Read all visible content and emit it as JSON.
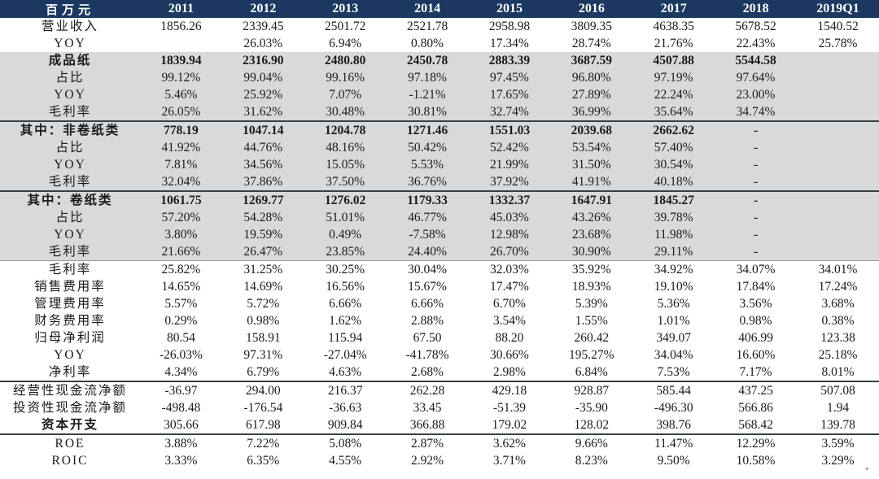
{
  "chart_data": {
    "type": "table",
    "unit_label": "百万元",
    "columns": [
      "2011",
      "2012",
      "2013",
      "2014",
      "2015",
      "2016",
      "2017",
      "2018",
      "2019Q1"
    ],
    "rows": [
      {
        "label": "营业收入",
        "values": [
          "1856.26",
          "2339.45",
          "2501.72",
          "2521.78",
          "2958.98",
          "3809.35",
          "4638.35",
          "5678.52",
          "1540.52"
        ],
        "bold": false,
        "shaded": false,
        "rule": ""
      },
      {
        "label": "YOY",
        "values": [
          "",
          "26.03%",
          "6.94%",
          "0.80%",
          "17.34%",
          "28.74%",
          "21.76%",
          "22.43%",
          "25.78%"
        ],
        "bold": false,
        "shaded": false,
        "rule": ""
      },
      {
        "label": "成品纸",
        "values": [
          "1839.94",
          "2316.90",
          "2480.80",
          "2450.78",
          "2883.39",
          "3687.59",
          "4507.88",
          "5544.58",
          ""
        ],
        "bold": true,
        "shaded": true,
        "rule": ""
      },
      {
        "label": "占比",
        "values": [
          "99.12%",
          "99.04%",
          "99.16%",
          "97.18%",
          "97.45%",
          "96.80%",
          "97.19%",
          "97.64%",
          ""
        ],
        "bold": false,
        "shaded": true,
        "rule": ""
      },
      {
        "label": "YOY",
        "values": [
          "5.46%",
          "25.92%",
          "7.07%",
          "-1.21%",
          "17.65%",
          "27.89%",
          "22.24%",
          "23.00%",
          ""
        ],
        "bold": false,
        "shaded": true,
        "rule": ""
      },
      {
        "label": "毛利率",
        "values": [
          "26.05%",
          "31.62%",
          "30.48%",
          "30.81%",
          "32.74%",
          "36.99%",
          "35.64%",
          "34.74%",
          ""
        ],
        "bold": false,
        "shaded": true,
        "rule": ""
      },
      {
        "label": "其中：非卷纸类",
        "values": [
          "778.19",
          "1047.14",
          "1204.78",
          "1271.46",
          "1551.03",
          "2039.68",
          "2662.62",
          "-",
          ""
        ],
        "bold": true,
        "shaded": true,
        "rule": "dark"
      },
      {
        "label": "占比",
        "values": [
          "41.92%",
          "44.76%",
          "48.16%",
          "50.42%",
          "52.42%",
          "53.54%",
          "57.40%",
          "-",
          ""
        ],
        "bold": false,
        "shaded": true,
        "rule": ""
      },
      {
        "label": "YOY",
        "values": [
          "7.81%",
          "34.56%",
          "15.05%",
          "5.53%",
          "21.99%",
          "31.50%",
          "30.54%",
          "-",
          ""
        ],
        "bold": false,
        "shaded": true,
        "rule": ""
      },
      {
        "label": "毛利率",
        "values": [
          "32.04%",
          "37.86%",
          "37.50%",
          "36.76%",
          "37.92%",
          "41.91%",
          "40.18%",
          "-",
          ""
        ],
        "bold": false,
        "shaded": true,
        "rule": ""
      },
      {
        "label": "其中：卷纸类",
        "values": [
          "1061.75",
          "1269.77",
          "1276.02",
          "1179.33",
          "1332.37",
          "1647.91",
          "1845.27",
          "-",
          ""
        ],
        "bold": true,
        "shaded": true,
        "rule": "dark"
      },
      {
        "label": "占比",
        "values": [
          "57.20%",
          "54.28%",
          "51.01%",
          "46.77%",
          "45.03%",
          "43.26%",
          "39.78%",
          "-",
          ""
        ],
        "bold": false,
        "shaded": true,
        "rule": ""
      },
      {
        "label": "YOY",
        "values": [
          "3.80%",
          "19.59%",
          "0.49%",
          "-7.58%",
          "12.98%",
          "23.68%",
          "11.98%",
          "-",
          ""
        ],
        "bold": false,
        "shaded": true,
        "rule": ""
      },
      {
        "label": "毛利率",
        "values": [
          "21.66%",
          "26.47%",
          "23.85%",
          "24.40%",
          "26.70%",
          "30.90%",
          "29.11%",
          "-",
          ""
        ],
        "bold": false,
        "shaded": true,
        "rule": ""
      },
      {
        "label": "毛利率",
        "values": [
          "25.82%",
          "31.25%",
          "30.25%",
          "30.04%",
          "32.03%",
          "35.92%",
          "34.92%",
          "34.07%",
          "34.01%"
        ],
        "bold": false,
        "shaded": false,
        "rule": "light"
      },
      {
        "label": "销售费用率",
        "values": [
          "14.65%",
          "14.69%",
          "16.56%",
          "15.67%",
          "17.47%",
          "18.93%",
          "19.10%",
          "17.84%",
          "17.24%"
        ],
        "bold": false,
        "shaded": false,
        "rule": ""
      },
      {
        "label": "管理费用率",
        "values": [
          "5.57%",
          "5.72%",
          "6.66%",
          "6.66%",
          "6.70%",
          "5.39%",
          "5.36%",
          "3.56%",
          "3.68%"
        ],
        "bold": false,
        "shaded": false,
        "rule": ""
      },
      {
        "label": "财务费用率",
        "values": [
          "0.29%",
          "0.98%",
          "1.62%",
          "2.88%",
          "3.54%",
          "1.55%",
          "1.01%",
          "0.98%",
          "0.38%"
        ],
        "bold": false,
        "shaded": false,
        "rule": ""
      },
      {
        "label": "归母净利润",
        "values": [
          "80.54",
          "158.91",
          "115.94",
          "67.50",
          "88.20",
          "260.42",
          "349.07",
          "406.99",
          "123.38"
        ],
        "bold": false,
        "shaded": false,
        "rule": ""
      },
      {
        "label": "YOY",
        "values": [
          "-26.03%",
          "97.31%",
          "-27.04%",
          "-41.78%",
          "30.66%",
          "195.27%",
          "34.04%",
          "16.60%",
          "25.18%"
        ],
        "bold": false,
        "shaded": false,
        "rule": ""
      },
      {
        "label": "净利率",
        "values": [
          "4.34%",
          "6.79%",
          "4.63%",
          "2.68%",
          "2.98%",
          "6.84%",
          "7.53%",
          "7.17%",
          "8.01%"
        ],
        "bold": false,
        "shaded": false,
        "rule": ""
      },
      {
        "label": "经营性现金流净额",
        "values": [
          "-36.97",
          "294.00",
          "216.37",
          "262.28",
          "429.18",
          "928.87",
          "585.44",
          "437.25",
          "507.08"
        ],
        "bold": false,
        "shaded": false,
        "rule": "dark"
      },
      {
        "label": "投资性现金流净额",
        "values": [
          "-498.48",
          "-176.54",
          "-36.63",
          "33.45",
          "-51.39",
          "-35.90",
          "-496.30",
          "566.86",
          "1.94"
        ],
        "bold": false,
        "shaded": false,
        "rule": ""
      },
      {
        "label": "资本开支",
        "values": [
          "305.66",
          "617.98",
          "909.84",
          "366.88",
          "179.02",
          "128.02",
          "398.76",
          "568.42",
          "139.78"
        ],
        "bold": false,
        "label_bold": true,
        "shaded": false,
        "rule": ""
      },
      {
        "label": "ROE",
        "values": [
          "3.88%",
          "7.22%",
          "5.08%",
          "2.87%",
          "3.62%",
          "9.66%",
          "11.47%",
          "12.29%",
          "3.59%"
        ],
        "bold": false,
        "shaded": false,
        "rule": "dark"
      },
      {
        "label": "ROIC",
        "values": [
          "3.33%",
          "6.35%",
          "4.55%",
          "2.92%",
          "3.71%",
          "8.23%",
          "9.50%",
          "10.58%",
          "3.29%"
        ],
        "bold": false,
        "shaded": false,
        "rule": ""
      }
    ]
  },
  "colors": {
    "header_bg": "#1B3860",
    "header_text": "#FFFFFF",
    "shade": "#D9D9D9",
    "rule_dark": "#3A3F46",
    "rule_light": "#9A9A9A",
    "text": "#1A1A1A"
  },
  "artifact": {
    "glyph": "+"
  }
}
